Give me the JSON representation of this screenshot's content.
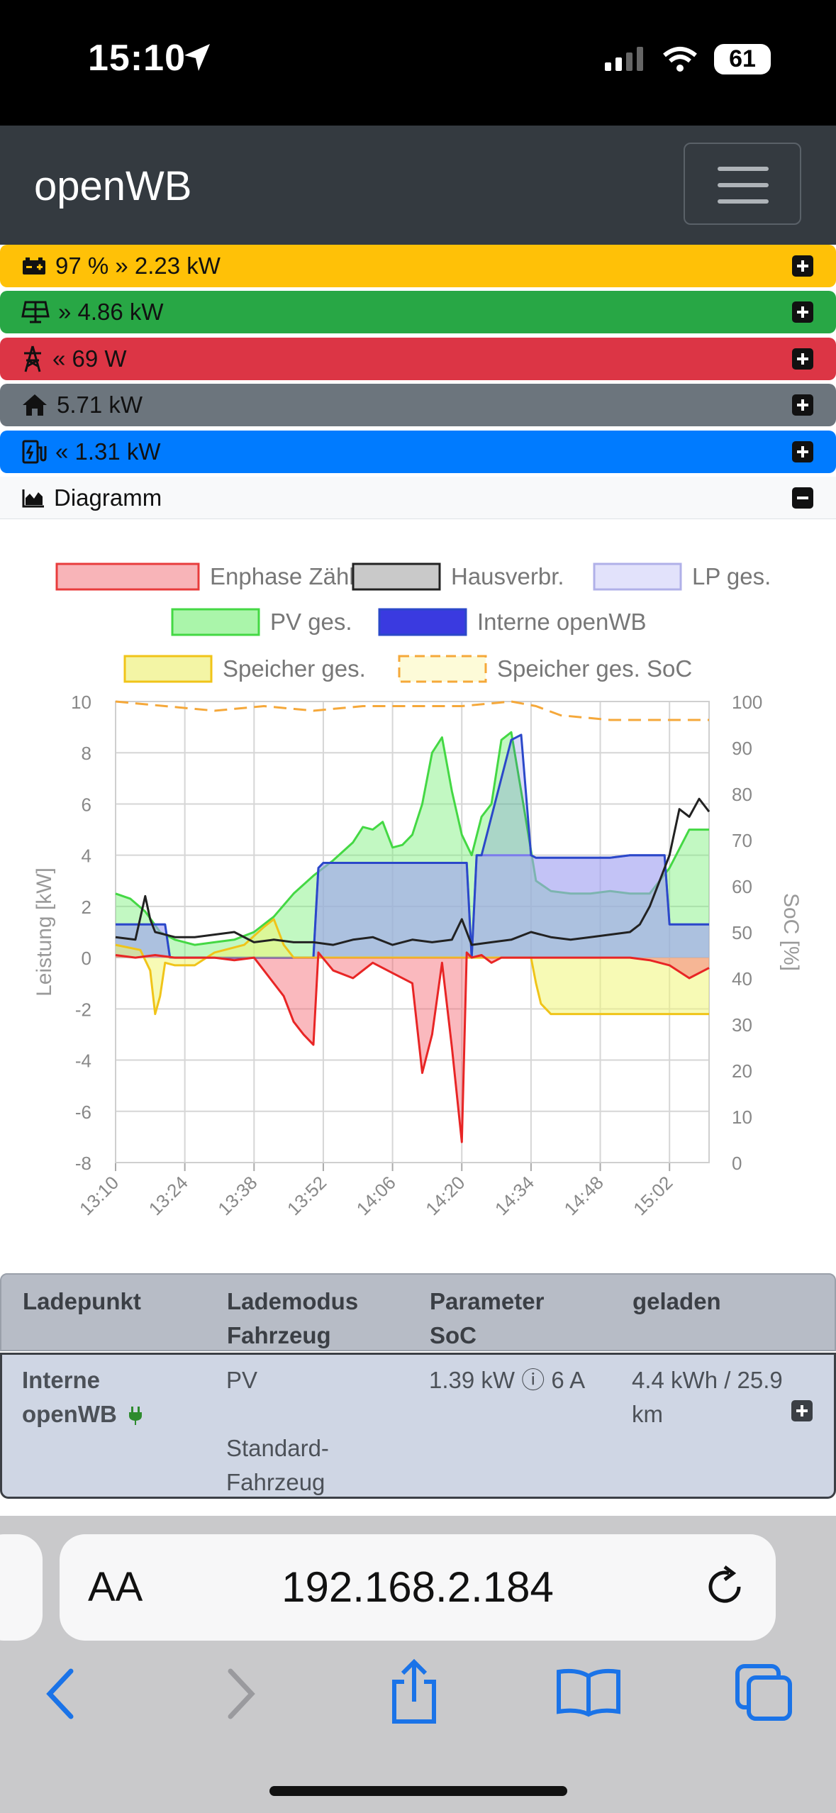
{
  "status_bar": {
    "time": "15:10",
    "battery": "61"
  },
  "navbar": {
    "brand": "openWB"
  },
  "summary_rows": [
    {
      "icon": "battery-icon",
      "value": "97 % » 2.23 kW",
      "color": "#ffc107"
    },
    {
      "icon": "solar-panel-icon",
      "value": "» 4.86 kW",
      "color": "#28a745"
    },
    {
      "icon": "power-grid-icon",
      "value": "« 69 W",
      "color": "#dc3545"
    },
    {
      "icon": "home-icon",
      "value": "5.71 kW",
      "color": "#6c757d"
    },
    {
      "icon": "charging-station-icon",
      "value": "« 1.31 kW",
      "color": "#007bff"
    }
  ],
  "diagram_header": {
    "label": "Diagramm"
  },
  "chart_data": {
    "type": "area",
    "legend": [
      "Enphase Zähler",
      "Hausverbr.",
      "LP ges.",
      "PV ges.",
      "Interne openWB",
      "Speicher ges.",
      "Speicher ges. SoC"
    ],
    "legend_placement": "top",
    "ylabel": "Leistung [kW]",
    "y2label": "SoC [%]",
    "ylim": [
      -8,
      10
    ],
    "y2lim": [
      0,
      100
    ],
    "yticks": [
      "10",
      "8",
      "6",
      "4",
      "2",
      "0",
      "-2",
      "-4",
      "-6",
      "-8"
    ],
    "y2ticks": [
      "100",
      "90",
      "80",
      "70",
      "60",
      "50",
      "40",
      "30",
      "20",
      "10",
      "0"
    ],
    "xticks": [
      "13:10",
      "13:24",
      "13:38",
      "13:52",
      "14:06",
      "14:20",
      "14:34",
      "14:48",
      "15:02"
    ],
    "grid": true,
    "series": [
      {
        "name": "PV ges.",
        "color": "#44d844",
        "x": [
          0,
          3,
          6,
          9,
          12,
          16,
          20,
          24,
          28,
          32,
          36,
          40,
          44,
          48,
          50,
          52,
          54,
          56,
          58,
          60,
          62,
          64,
          66,
          68,
          70,
          72,
          74,
          76,
          78,
          80,
          82,
          85,
          88,
          92,
          96,
          100,
          104,
          108,
          112,
          116,
          120
        ],
        "values": [
          2.5,
          2.3,
          1.8,
          1.0,
          0.7,
          0.5,
          0.6,
          0.7,
          1.0,
          1.6,
          2.5,
          3.2,
          3.8,
          4.5,
          5.1,
          5.0,
          5.3,
          4.3,
          4.4,
          4.8,
          6.0,
          8.0,
          8.6,
          6.5,
          4.8,
          4.0,
          5.5,
          6.0,
          8.5,
          8.8,
          6.5,
          3.0,
          2.6,
          2.5,
          2.5,
          2.6,
          2.5,
          2.5,
          3.5,
          5.0,
          5.0
        ]
      },
      {
        "name": "Hausverbr.",
        "color": "#222222",
        "x": [
          0,
          4,
          6,
          7,
          8,
          10,
          12,
          16,
          20,
          24,
          28,
          32,
          36,
          40,
          44,
          48,
          52,
          56,
          60,
          64,
          68,
          70,
          72,
          76,
          80,
          84,
          88,
          92,
          96,
          100,
          104,
          106,
          108,
          110,
          112,
          114,
          116,
          118,
          120
        ],
        "values": [
          0.8,
          0.7,
          2.4,
          1.5,
          1.0,
          0.9,
          0.8,
          0.8,
          0.9,
          1.0,
          0.6,
          0.7,
          0.6,
          0.6,
          0.5,
          0.7,
          0.8,
          0.5,
          0.7,
          0.6,
          0.7,
          1.5,
          0.5,
          0.6,
          0.7,
          1.0,
          0.8,
          0.7,
          0.8,
          0.9,
          1.0,
          1.3,
          2.0,
          3.0,
          4.0,
          5.8,
          5.5,
          6.2,
          5.7
        ]
      },
      {
        "name": "Interne openWB",
        "color": "#2b48c9",
        "x": [
          0,
          10,
          11,
          40,
          41,
          42,
          71,
          72,
          73,
          74,
          80,
          82,
          84,
          85,
          86,
          100,
          104,
          110,
          111,
          112,
          120
        ],
        "values": [
          1.3,
          1.3,
          0,
          0,
          3.5,
          3.7,
          3.7,
          0,
          4.0,
          4.0,
          8.5,
          8.7,
          4.0,
          3.9,
          3.9,
          3.9,
          4.0,
          4.0,
          4.0,
          1.3,
          1.3
        ]
      },
      {
        "name": "LP ges.",
        "color": "#8a8af0",
        "x": [
          0,
          10,
          11,
          40,
          41,
          42,
          71,
          72,
          73,
          84,
          85,
          86,
          100,
          104,
          110,
          111,
          112,
          120
        ],
        "values": [
          1.3,
          1.3,
          0,
          0,
          3.5,
          3.7,
          3.7,
          0,
          4.0,
          4.0,
          3.9,
          3.9,
          3.9,
          4.0,
          4.0,
          4.0,
          1.3,
          1.3
        ]
      },
      {
        "name": "Enphase Zähler",
        "color": "#e82525",
        "x": [
          0,
          4,
          8,
          12,
          16,
          20,
          24,
          28,
          34,
          36,
          38,
          40,
          41,
          44,
          48,
          52,
          56,
          60,
          62,
          64,
          66,
          68,
          70,
          71,
          72,
          74,
          76,
          78,
          82,
          86,
          90,
          96,
          100,
          104,
          108,
          112,
          116,
          120
        ],
        "values": [
          0.1,
          0.0,
          0.1,
          0.0,
          0.0,
          0.0,
          -0.1,
          0.0,
          -1.5,
          -2.5,
          -3.0,
          -3.4,
          0.2,
          -0.5,
          -0.8,
          -0.2,
          -0.6,
          -1.0,
          -4.5,
          -3.0,
          -0.2,
          -3.5,
          -7.2,
          0.2,
          0.0,
          0.1,
          -0.2,
          0.0,
          0.0,
          0.0,
          0.0,
          0.0,
          0.0,
          0.0,
          -0.1,
          -0.3,
          -0.8,
          -0.4
        ]
      },
      {
        "name": "Speicher ges.",
        "color": "#f0c419",
        "x": [
          0,
          5,
          7,
          8,
          9,
          10,
          12,
          16,
          20,
          26,
          30,
          32,
          34,
          36,
          40,
          44,
          48,
          52,
          56,
          60,
          64,
          68,
          72,
          76,
          78,
          80,
          82,
          84,
          85,
          86,
          88,
          92,
          96,
          100,
          104,
          108,
          112,
          116,
          120
        ],
        "values": [
          0.5,
          0.3,
          -0.5,
          -2.2,
          -1.5,
          -0.2,
          -0.3,
          -0.3,
          0.2,
          0.5,
          1.2,
          1.5,
          0.5,
          0.0,
          0.0,
          0.0,
          0.0,
          0.0,
          0.0,
          0.0,
          0.0,
          0.0,
          0.0,
          0.0,
          0.0,
          0.0,
          0.0,
          0.0,
          -1.0,
          -1.8,
          -2.2,
          -2.2,
          -2.2,
          -2.2,
          -2.2,
          -2.2,
          -2.2,
          -2.2,
          -2.2
        ]
      },
      {
        "name": "Speicher ges. SoC",
        "color": "#f5a83a",
        "dashed": true,
        "x": [
          0,
          10,
          20,
          30,
          40,
          50,
          60,
          70,
          80,
          85,
          90,
          100,
          110,
          120
        ],
        "values": [
          100,
          99,
          98,
          99,
          98,
          99,
          99,
          99,
          100,
          99,
          97,
          96,
          96,
          96
        ]
      }
    ]
  },
  "table": {
    "headers": [
      {
        "line1": "Ladepunkt",
        "line2": ""
      },
      {
        "line1": "Lademodus",
        "line2": "Fahrzeug"
      },
      {
        "line1": "Parameter",
        "line2": "SoC"
      },
      {
        "line1": "geladen",
        "line2": ""
      }
    ],
    "row": {
      "ladepunkt_line1": "Interne",
      "ladepunkt_line2": "openWB",
      "mode": "PV",
      "vehicle_line1": "Standard-",
      "vehicle_line2": "Fahrzeug",
      "params": "1.39 kW ⓘ 6 A",
      "charged_line1": "4.4 kWh / 25.9",
      "charged_line2": "km"
    }
  },
  "browser": {
    "aa_label": "AA",
    "url": "192.168.2.184"
  }
}
